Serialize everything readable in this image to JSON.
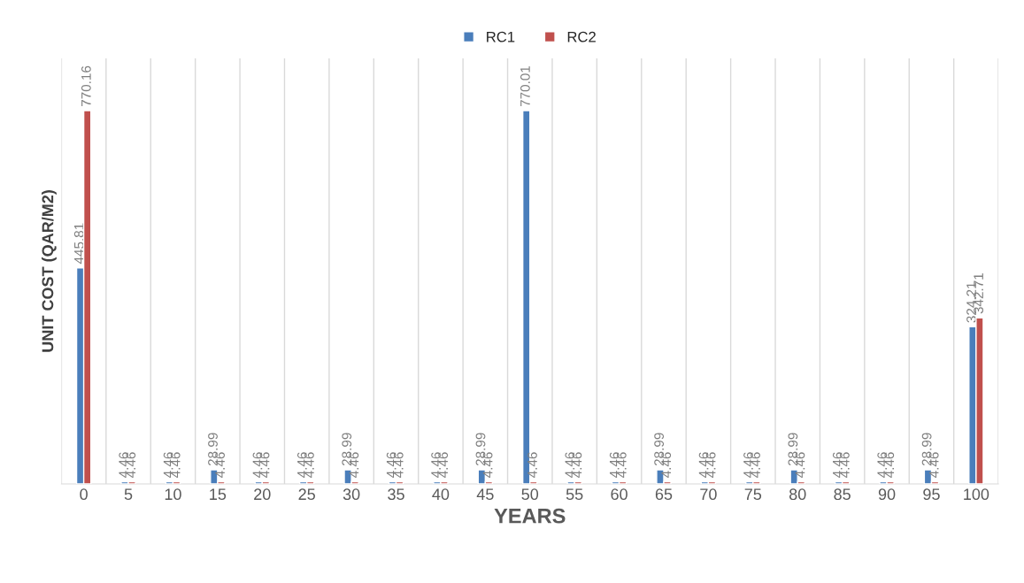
{
  "chart_data": {
    "type": "bar",
    "xlabel": "YEARS",
    "ylabel": "UNIT COST (QAR/M2)",
    "categories": [
      "0",
      "5",
      "10",
      "15",
      "20",
      "25",
      "30",
      "35",
      "40",
      "45",
      "50",
      "55",
      "60",
      "65",
      "70",
      "75",
      "80",
      "85",
      "90",
      "95",
      "100"
    ],
    "series": [
      {
        "name": "RC1",
        "color": "#4a7ebb",
        "values": [
          445.81,
          4.46,
          4.46,
          28.99,
          4.46,
          4.46,
          28.99,
          4.46,
          4.46,
          28.99,
          770.01,
          4.46,
          4.46,
          28.99,
          4.46,
          4.46,
          28.99,
          4.46,
          4.46,
          28.99,
          324.21
        ]
      },
      {
        "name": "RC2",
        "color": "#c0504d",
        "values": [
          770.16,
          4.46,
          4.46,
          4.46,
          4.46,
          4.46,
          4.46,
          4.46,
          4.46,
          4.46,
          4.46,
          4.46,
          4.46,
          4.46,
          4.46,
          4.46,
          4.46,
          4.46,
          4.46,
          4.46,
          342.71
        ]
      }
    ],
    "data_labels": true,
    "legend": "top",
    "grid": "x",
    "tick_labels": "x"
  }
}
